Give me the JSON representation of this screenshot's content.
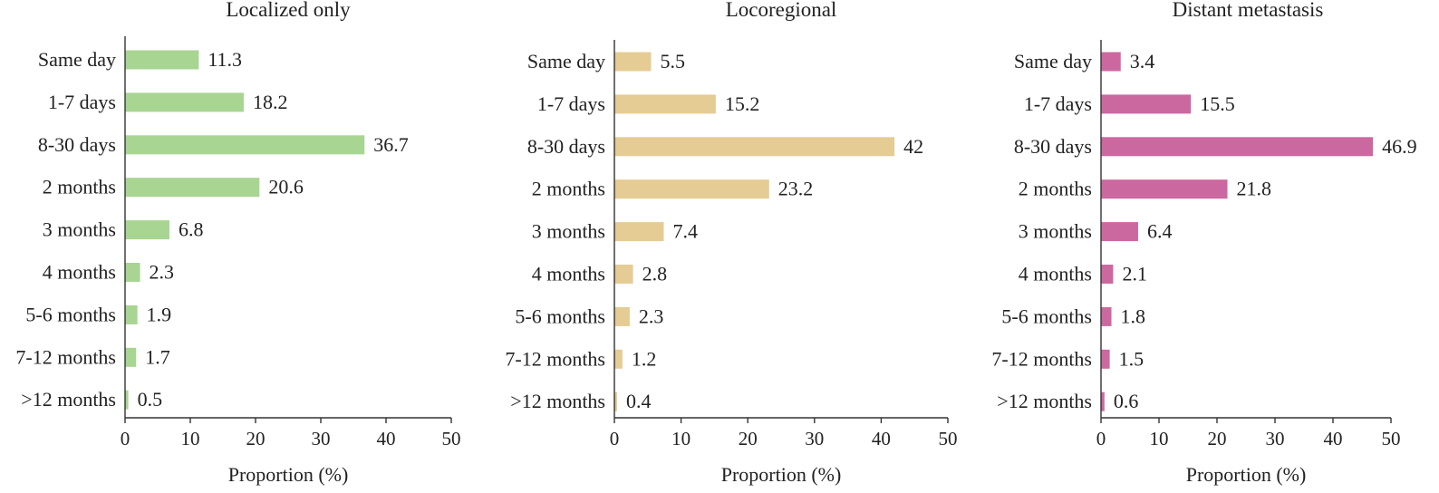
{
  "chart_data": [
    {
      "type": "bar",
      "orientation": "horizontal",
      "title": "Localized only",
      "xlabel": "Proportion (%)",
      "ylabel": "",
      "xlim": [
        0,
        50
      ],
      "xticks": [
        "0",
        "10",
        "20",
        "30",
        "40",
        "50"
      ],
      "color": "#a8d592",
      "grid": false,
      "categories": [
        "Same day",
        "1-7 days",
        "8-30 days",
        "2 months",
        "3 months",
        "4 months",
        "5-6 months",
        "7-12 months",
        ">12 months"
      ],
      "values": [
        11.3,
        18.2,
        36.7,
        20.6,
        6.8,
        2.3,
        1.9,
        1.7,
        0.5
      ],
      "value_labels": [
        "11.3",
        "18.2",
        "36.7",
        "20.6",
        "6.8",
        "2.3",
        "1.9",
        "1.7",
        "0.5"
      ]
    },
    {
      "type": "bar",
      "orientation": "horizontal",
      "title": "Locoregional",
      "xlabel": "Proportion (%)",
      "ylabel": "",
      "xlim": [
        0,
        50
      ],
      "xticks": [
        "0",
        "10",
        "20",
        "30",
        "40",
        "50"
      ],
      "color": "#e5cc94",
      "grid": false,
      "categories": [
        "Same day",
        "1-7 days",
        "8-30 days",
        "2 months",
        "3 months",
        "4 months",
        "5-6 months",
        "7-12 months",
        ">12 months"
      ],
      "values": [
        5.5,
        15.2,
        42,
        23.2,
        7.4,
        2.8,
        2.3,
        1.2,
        0.4
      ],
      "value_labels": [
        "5.5",
        "15.2",
        "42",
        "23.2",
        "7.4",
        "2.8",
        "2.3",
        "1.2",
        "0.4"
      ]
    },
    {
      "type": "bar",
      "orientation": "horizontal",
      "title": "Distant metastasis",
      "xlabel": "Proportion (%)",
      "ylabel": "",
      "xlim": [
        0,
        50
      ],
      "xticks": [
        "0",
        "10",
        "20",
        "30",
        "40",
        "50"
      ],
      "color": "#cc68a0",
      "grid": false,
      "categories": [
        "Same day",
        "1-7 days",
        "8-30 days",
        "2 months",
        "3 months",
        "4 months",
        "5-6 months",
        "7-12 months",
        ">12 months"
      ],
      "values": [
        3.4,
        15.5,
        46.9,
        21.8,
        6.4,
        2.1,
        1.8,
        1.5,
        0.6
      ],
      "value_labels": [
        "3.4",
        "15.5",
        "46.9",
        "21.8",
        "6.4",
        "2.1",
        "1.8",
        "1.5",
        "0.6"
      ]
    }
  ]
}
